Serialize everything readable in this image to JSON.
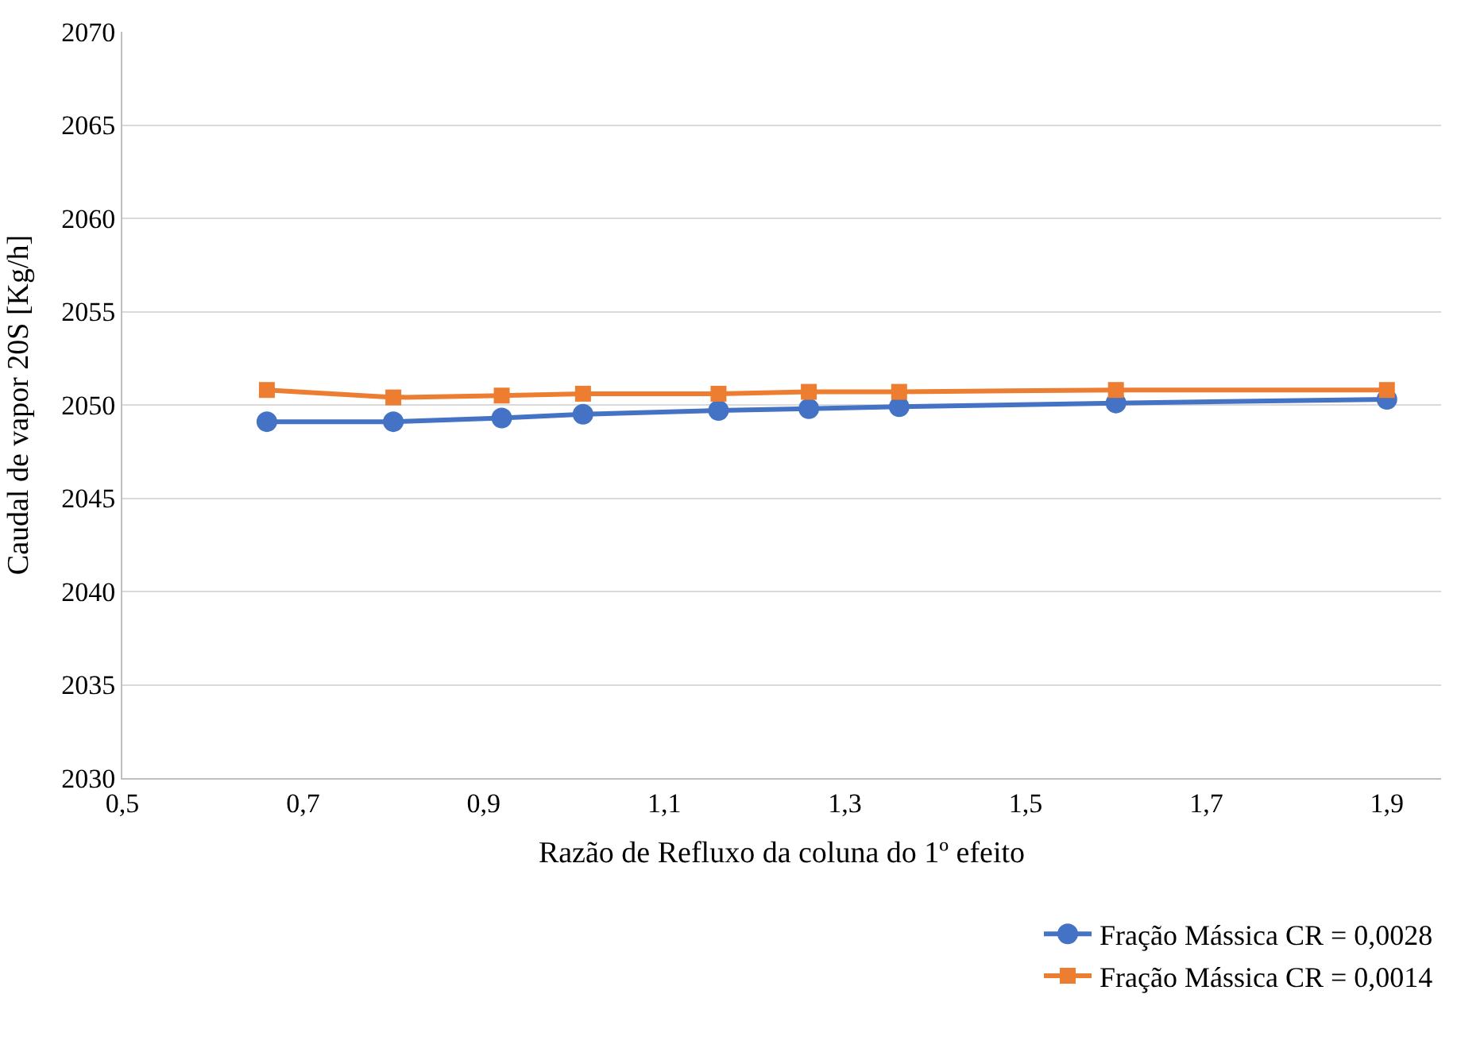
{
  "chart_data": {
    "type": "line",
    "xlabel": "Razão de Refluxo da coluna do 1º efeito",
    "ylabel": "Caudal de vapor 20S [Kg/h]",
    "x": [
      0.66,
      0.8,
      0.92,
      1.01,
      1.16,
      1.26,
      1.36,
      1.6,
      1.9
    ],
    "series": [
      {
        "name": "Fração Mássica CR = 0,0028",
        "color": "#4472c4",
        "marker": "circle",
        "values": [
          2049.1,
          2049.1,
          2049.3,
          2049.5,
          2049.7,
          2049.8,
          2049.9,
          2050.1,
          2050.3
        ]
      },
      {
        "name": "Fração Mássica CR = 0,0014",
        "color": "#ed7d31",
        "marker": "square",
        "values": [
          2050.8,
          2050.4,
          2050.5,
          2050.6,
          2050.6,
          2050.7,
          2050.7,
          2050.8,
          2050.8
        ]
      }
    ],
    "xlim": [
      0.5,
      1.96
    ],
    "xticks": [
      {
        "value": 0.5,
        "label": "0,5"
      },
      {
        "value": 0.7,
        "label": "0,7"
      },
      {
        "value": 0.9,
        "label": "0,9"
      },
      {
        "value": 1.1,
        "label": "1,1"
      },
      {
        "value": 1.3,
        "label": "1,3"
      },
      {
        "value": 1.5,
        "label": "1,5"
      },
      {
        "value": 1.7,
        "label": "1,7"
      },
      {
        "value": 1.9,
        "label": "1,9"
      }
    ],
    "ylim": [
      2030,
      2070
    ],
    "yticks": [
      2030,
      2035,
      2040,
      2045,
      2050,
      2055,
      2060,
      2065,
      2070
    ],
    "grid": "y",
    "legend": "bottom right",
    "line_style": "solid"
  }
}
